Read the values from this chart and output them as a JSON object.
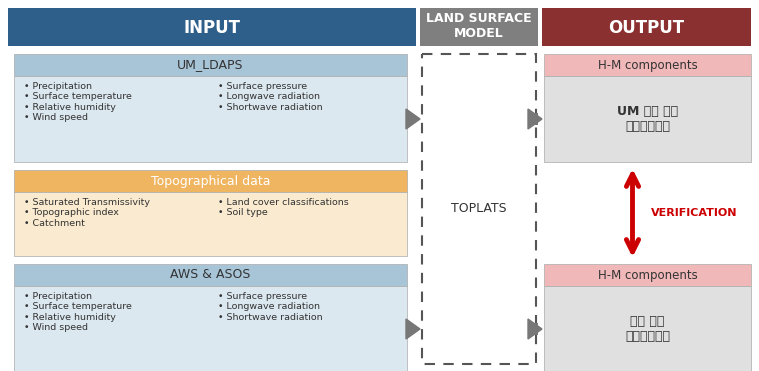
{
  "fig_width": 7.59,
  "fig_height": 3.71,
  "dpi": 100,
  "bg_color": "#ffffff",
  "header_blue": "#2e5f8a",
  "header_gray": "#7f7f7f",
  "header_red": "#8b3030",
  "box_blue_title": "#a8c5d8",
  "box_orange_title": "#f0b560",
  "box_content_blue": "#dce8f0",
  "box_content_orange": "#faebd0",
  "box_pink_title": "#f0b8b8",
  "box_gray_content": "#e0e0e0",
  "text_white": "#ffffff",
  "text_dark": "#333333",
  "text_red": "#cc0000",
  "arrow_dark": "#666666",
  "border_color": "#aaaaaa",
  "header_input": "INPUT",
  "header_lsm": "LAND SURFACE\nMODEL",
  "header_output": "OUTPUT",
  "box1_title": "UM_LDAPS",
  "box1_col1": "• Precipitation\n• Surface temperature\n• Relative humidity\n• Wind speed",
  "box1_col2": "• Surface pressure\n• Longwave radiation\n• Shortwave radiation",
  "box2_title": "Topographical data",
  "box2_col1": "• Saturated Transmissivity\n• Topographic index\n• Catchment",
  "box2_col2": "• Land cover classifications\n• Soil type",
  "box3_title": "AWS & ASOS",
  "box3_col1": "• Precipitation\n• Surface temperature\n• Relative humidity\n• Wind speed",
  "box3_col2": "• Surface pressure\n• Longwave radiation\n• Shortwave radiation",
  "toplats_label": "TOPLATS",
  "hm1_title": "H-M components",
  "hm1_text": "UM 모델 기반\n수문기상정보",
  "hm2_title": "H-M components",
  "hm2_text": "관측 기반\n수문기상정보",
  "verification": "VERIFICATION"
}
